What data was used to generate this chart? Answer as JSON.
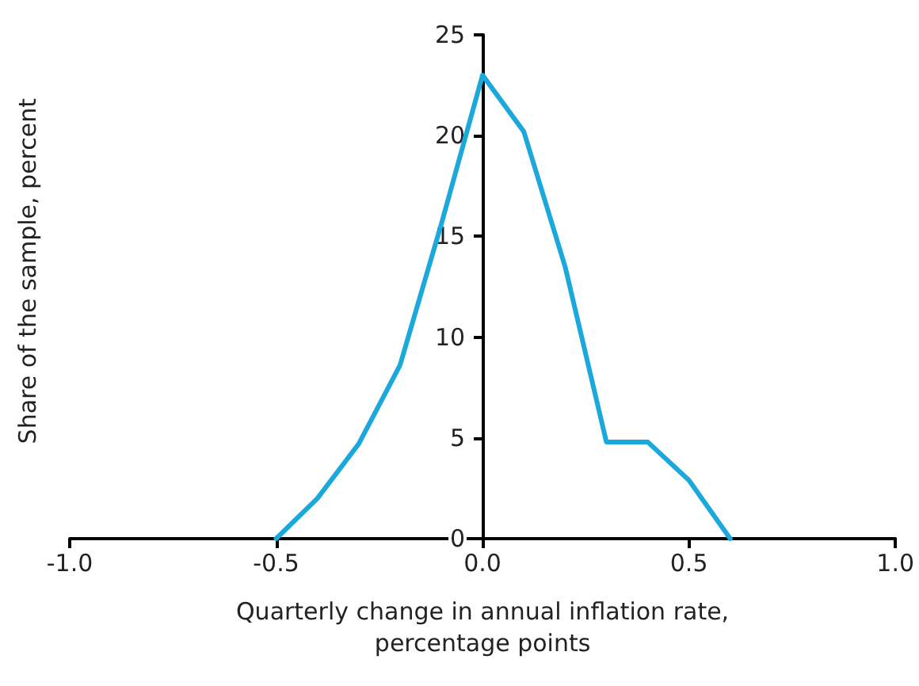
{
  "chart_data": {
    "type": "line",
    "xlabel": "Quarterly change in annual inflation rate,\npercentage points",
    "ylabel": "Share of the sample, percent",
    "x": [
      -0.5,
      -0.4,
      -0.3,
      -0.2,
      -0.1,
      0.0,
      0.1,
      0.2,
      0.3,
      0.4,
      0.5,
      0.6
    ],
    "series": [
      {
        "color": "#1ba8dc",
        "values": [
          0,
          2.0,
          4.7,
          8.6,
          15.6,
          23.0,
          20.2,
          13.5,
          4.8,
          4.8,
          2.9,
          0
        ]
      }
    ],
    "xlim": [
      -1.0,
      1.0
    ],
    "xticks": [
      {
        "value": -1.0,
        "label": "-1.0"
      },
      {
        "value": -0.5,
        "label": "-0.5"
      },
      {
        "value": 0,
        "label": "0.0"
      },
      {
        "value": 0.5,
        "label": "0.5"
      },
      {
        "value": 1.0,
        "label": "1.0"
      }
    ],
    "ylim": [
      0,
      25
    ],
    "yticks": [
      0,
      5,
      10,
      15,
      20,
      25
    ],
    "grid": false,
    "marker": "none",
    "line_style": "solid"
  }
}
